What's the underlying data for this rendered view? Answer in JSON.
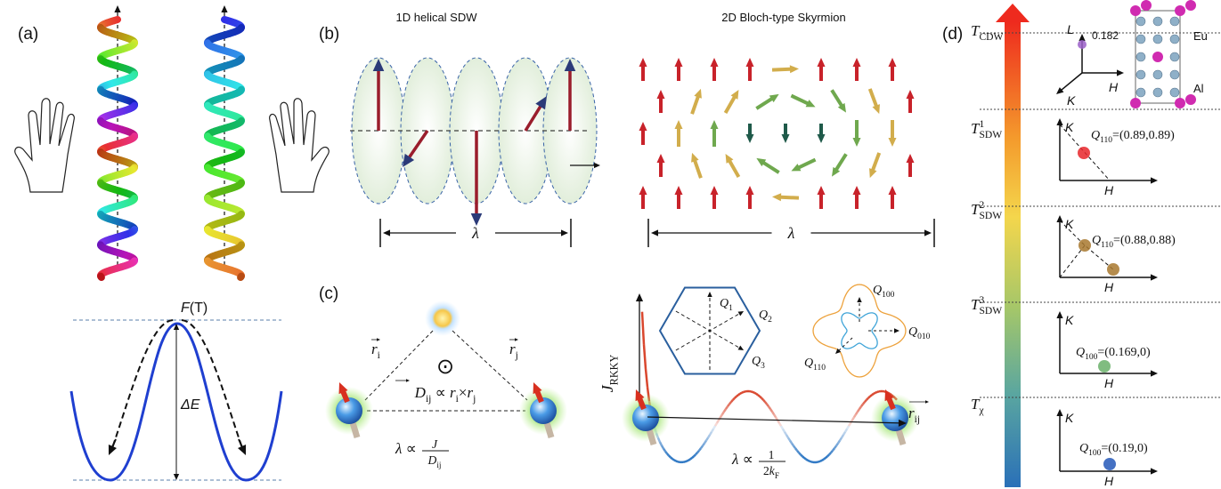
{
  "panel_a": {
    "label": "(a)",
    "energy": [
      {
        "symbol": "F"
      },
      {
        "symbol": "(T)"
      }
    ],
    "barrier": [
      {
        "symbol": "ΔE"
      }
    ]
  },
  "panel_b": {
    "label": "(b)",
    "sdw_title": "1D helical SDW",
    "skyrmion_title": "2D Bloch-type Skyrmion",
    "sdw_period": [
      {
        "symbol": "λ"
      }
    ],
    "skyrmion_period": [
      {
        "symbol": "λ"
      }
    ]
  },
  "panel_c": {
    "label": "(c)",
    "r_i": [
      {
        "symbol": "r",
        "subscript": "i"
      }
    ],
    "r_j": [
      {
        "symbol": "r",
        "subscript": "j"
      }
    ],
    "normal": "⊙",
    "dm_relation": [
      {
        "symbol": "D",
        "subscript": "ij"
      },
      {
        "symbol": " ∝ "
      },
      {
        "symbol": "r",
        "subscript": "i"
      },
      {
        "symbol": "×"
      },
      {
        "symbol": "r",
        "subscript": "j"
      }
    ],
    "dm_period": {
      "prefix": [
        {
          "symbol": "λ"
        },
        {
          "symbol": " ∝ "
        }
      ],
      "numerator": [
        {
          "symbol": "J"
        }
      ],
      "denominator": [
        {
          "symbol": "D",
          "subscript": "ij"
        }
      ]
    },
    "exchange": [
      {
        "symbol": "J",
        "subscript": "RKKY"
      }
    ],
    "bond": [
      {
        "symbol": "r",
        "subscript": "ij"
      }
    ],
    "rkky_period": {
      "prefix": [
        {
          "symbol": "λ"
        },
        {
          "symbol": " ∝ "
        }
      ],
      "numerator": [
        {
          "symbol": "1"
        }
      ],
      "denominator": [
        {
          "symbol": "2"
        },
        {
          "symbol": "k",
          "subscript": "F"
        }
      ]
    },
    "hexagon_vectors": [
      [
        {
          "symbol": "Q",
          "subscript": "1"
        }
      ],
      [
        {
          "symbol": "Q",
          "subscript": "2"
        }
      ],
      [
        {
          "symbol": "Q",
          "subscript": "3"
        }
      ]
    ],
    "fermi_vectors": [
      [
        {
          "symbol": "Q",
          "subscript": "100"
        }
      ],
      [
        {
          "symbol": "Q",
          "subscript": "010"
        }
      ],
      [
        {
          "symbol": "Q",
          "subscript": "110"
        }
      ]
    ]
  },
  "panel_d": {
    "label": "(d)",
    "temperatures": [
      [
        {
          "symbol": "T",
          "subscript": "CDW"
        }
      ],
      [
        {
          "symbol": "T",
          "subscript": "SDW",
          "superscript": "1"
        }
      ],
      [
        {
          "symbol": "T",
          "subscript": "SDW",
          "superscript": "2"
        }
      ],
      [
        {
          "symbol": "T",
          "subscript": "SDW",
          "superscript": "3"
        }
      ],
      [
        {
          "symbol": "T",
          "subscript": "χ"
        }
      ]
    ],
    "structure": {
      "L": "L",
      "H": "H",
      "K": "K",
      "value": "0.182",
      "atoms": [
        "Eu",
        "Al"
      ]
    },
    "phases": [
      {
        "vertical": "K",
        "horizontal": "H",
        "peak": [
          {
            "symbol": "Q",
            "subscript": "110"
          },
          {
            "symbol": "=(0.89,0.89)"
          }
        ]
      },
      {
        "vertical": "K",
        "horizontal": "H",
        "peak": [
          {
            "symbol": "Q",
            "subscript": "110"
          },
          {
            "symbol": "=(0.88,0.88)"
          }
        ]
      },
      {
        "vertical": "K",
        "horizontal": "H",
        "peak": [
          {
            "symbol": "Q",
            "subscript": "100"
          },
          {
            "symbol": "=(0.169,0)"
          }
        ]
      },
      {
        "vertical": "K",
        "horizontal": "H",
        "peak": [
          {
            "symbol": "Q",
            "subscript": "100"
          },
          {
            "symbol": "=(0.19,0)"
          }
        ]
      }
    ]
  }
}
